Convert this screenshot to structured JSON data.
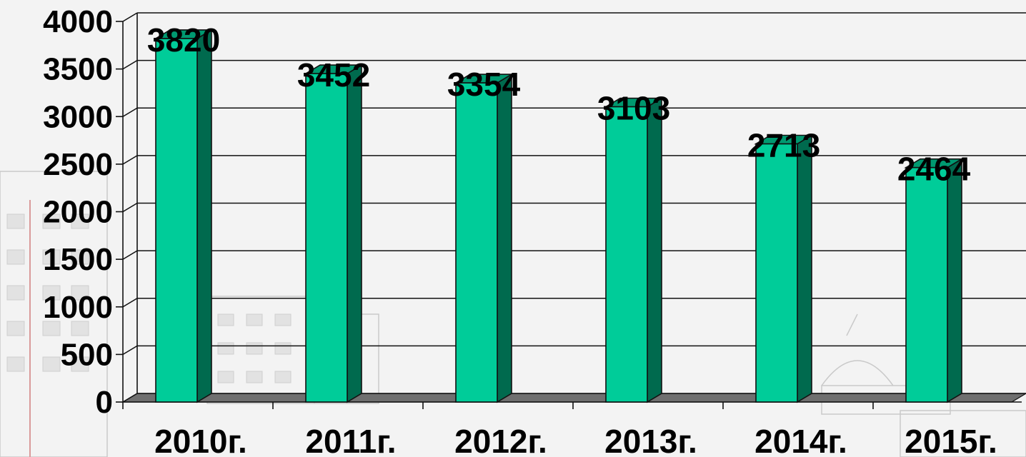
{
  "chart_data": {
    "type": "bar",
    "categories": [
      "2010г.",
      "2011г.",
      "2012г.",
      "2013г.",
      "2014г.",
      "2015г."
    ],
    "values": [
      3820,
      3452,
      3354,
      3103,
      2713,
      2464
    ],
    "ylim": [
      0,
      4000
    ],
    "yticks": [
      "0",
      "500",
      "1000",
      "1500",
      "2000",
      "2500",
      "3000",
      "3500",
      "4000"
    ],
    "grid": true,
    "style": "3d-column",
    "colors": {
      "bar_front": "#00cc99",
      "bar_side": "#006a4e",
      "floor": "#6f6f6f"
    },
    "title": "",
    "xlabel": "",
    "ylabel": ""
  }
}
